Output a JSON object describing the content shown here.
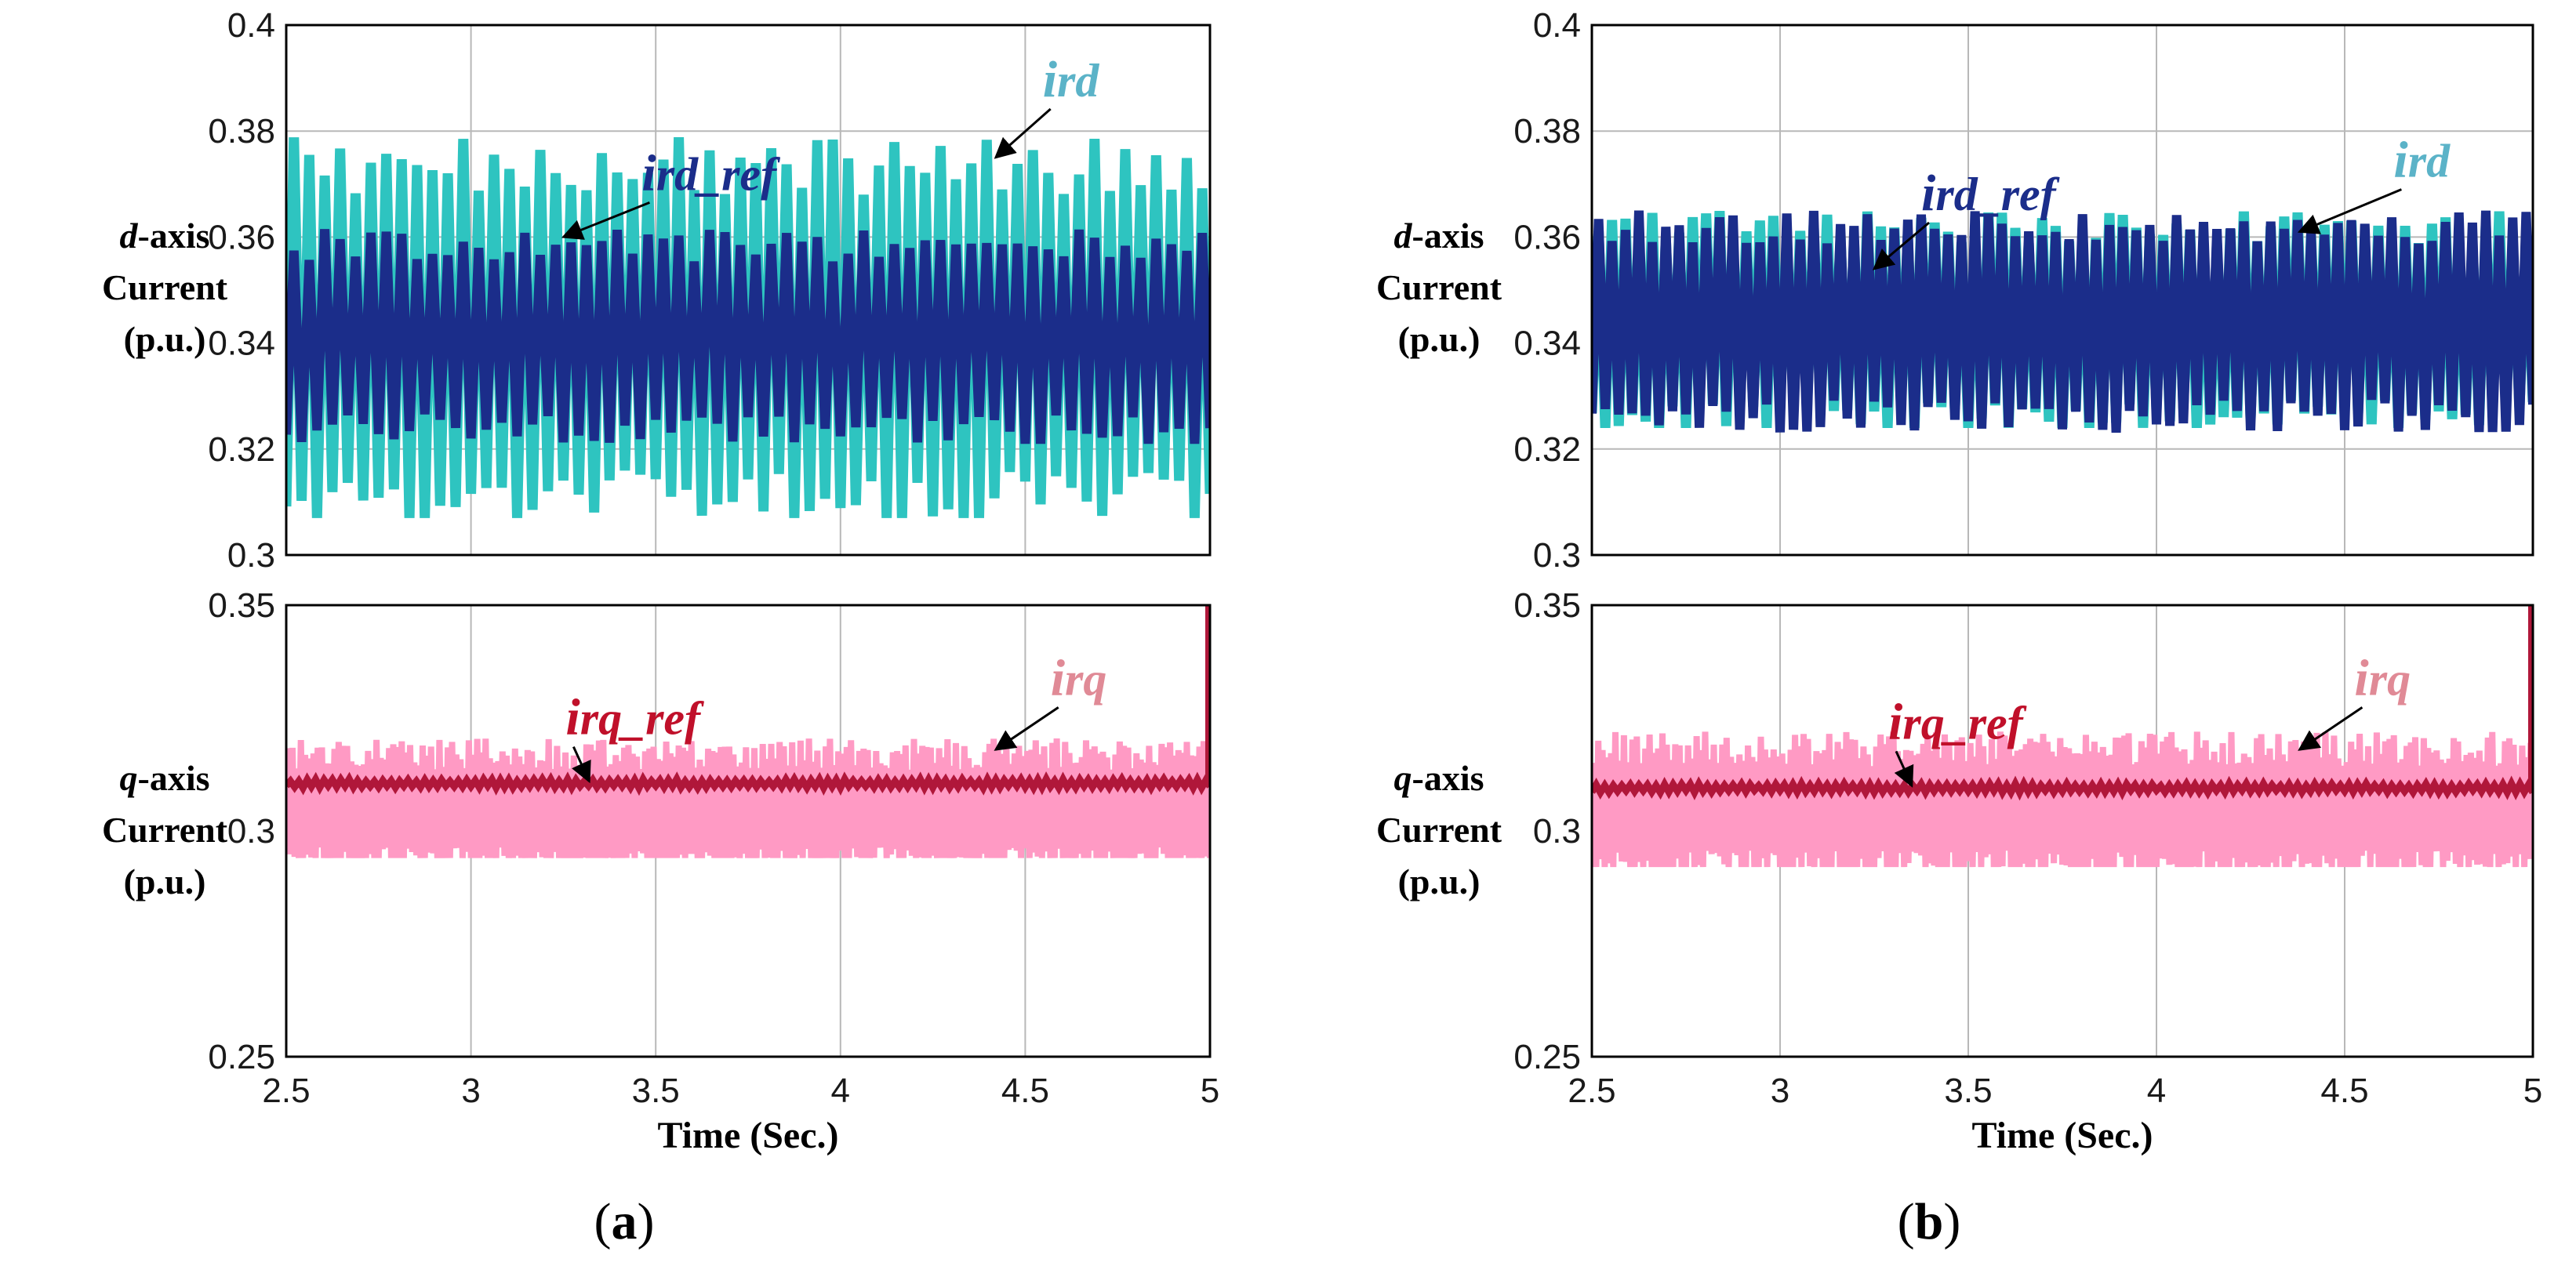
{
  "chart_data": [
    {
      "panel": "a",
      "type": "line",
      "ylabel_parts": [
        "d",
        "-axis",
        "Current",
        "(p.u.)"
      ],
      "xlabel": "",
      "xlim": [
        2.5,
        5
      ],
      "ylim": [
        0.3,
        0.4
      ],
      "xticks": [
        "2.5",
        "3",
        "3.5",
        "4",
        "4.5",
        "5"
      ],
      "yticks": [
        "0.3",
        "0.32",
        "0.34",
        "0.36",
        "0.38",
        "0.4"
      ],
      "grid": true,
      "series": [
        {
          "name": "ird",
          "color": "#2ec4c0",
          "center": 0.342,
          "min": 0.307,
          "max": 0.381,
          "cycles": 60
        },
        {
          "name": "ird_ref",
          "color": "#1b2d8a",
          "center": 0.341,
          "min": 0.321,
          "max": 0.362,
          "cycles": 60
        }
      ],
      "annotations": [
        {
          "name": "ird_ref",
          "color": "#1b2d8a",
          "tip_x": 3.25,
          "tip_y": 0.36
        },
        {
          "name": "ird",
          "color": "#5bb3c8",
          "tip_x": 4.42,
          "tip_y": 0.375
        }
      ]
    },
    {
      "panel": "a",
      "type": "line",
      "ylabel_parts": [
        "q",
        "-axis",
        "Current",
        "(p.u.)"
      ],
      "xlabel": "Time (Sec.)",
      "xlim": [
        2.5,
        5
      ],
      "ylim": [
        0.25,
        0.35
      ],
      "xticks": [
        "2.5",
        "3",
        "3.5",
        "4",
        "4.5",
        "5"
      ],
      "yticks": [
        "0.25",
        "0.3",
        "0.35"
      ],
      "grid": true,
      "series": [
        {
          "name": "irq",
          "color": "#ff9ac4",
          "center": 0.305,
          "min": 0.294,
          "max": 0.325,
          "cycles": 220
        },
        {
          "name": "irq_ref",
          "color": "#b0173a",
          "center": 0.3105,
          "min": 0.3095,
          "max": 0.3115,
          "cycles": 110
        }
      ],
      "annotations": [
        {
          "name": "irq_ref",
          "color": "#c0102a",
          "tip_x": 3.32,
          "tip_y": 0.311
        },
        {
          "name": "irq",
          "color": "#e08a96",
          "tip_x": 4.42,
          "tip_y": 0.318
        }
      ]
    },
    {
      "panel": "b",
      "type": "line",
      "ylabel_parts": [
        "d",
        "-axis",
        "Current",
        "(p.u.)"
      ],
      "xlabel": "",
      "xlim": [
        2.5,
        5
      ],
      "ylim": [
        0.3,
        0.4
      ],
      "xticks": [
        "2.5",
        "3",
        "3.5",
        "4",
        "4.5",
        "5"
      ],
      "yticks": [
        "0.3",
        "0.32",
        "0.34",
        "0.36",
        "0.38",
        "0.4"
      ],
      "grid": true,
      "series": [
        {
          "name": "ird",
          "color": "#2ec4c0",
          "center": 0.344,
          "min": 0.324,
          "max": 0.366,
          "cycles": 70
        },
        {
          "name": "ird_ref",
          "color": "#1b2d8a",
          "center": 0.344,
          "min": 0.323,
          "max": 0.365,
          "cycles": 70
        }
      ],
      "annotations": [
        {
          "name": "ird_ref",
          "color": "#1b2d8a",
          "tip_x": 3.25,
          "tip_y": 0.354
        },
        {
          "name": "ird",
          "color": "#5bb3c8",
          "tip_x": 4.38,
          "tip_y": 0.361
        }
      ]
    },
    {
      "panel": "b",
      "type": "line",
      "ylabel_parts": [
        "q",
        "-axis",
        "Current",
        "(p.u.)"
      ],
      "xlabel": "Time (Sec.)",
      "xlim": [
        2.5,
        5
      ],
      "ylim": [
        0.25,
        0.35
      ],
      "xticks": [
        "2.5",
        "3",
        "3.5",
        "4",
        "4.5",
        "5"
      ],
      "yticks": [
        "0.25",
        "0.3",
        "0.35"
      ],
      "grid": true,
      "series": [
        {
          "name": "irq",
          "color": "#ff9ac4",
          "center": 0.305,
          "min": 0.292,
          "max": 0.326,
          "cycles": 220
        },
        {
          "name": "irq_ref",
          "color": "#b0173a",
          "center": 0.3095,
          "min": 0.3085,
          "max": 0.3105,
          "cycles": 110
        }
      ],
      "annotations": [
        {
          "name": "irq_ref",
          "color": "#c0102a",
          "tip_x": 3.35,
          "tip_y": 0.31
        },
        {
          "name": "irq",
          "color": "#e08a96",
          "tip_x": 4.38,
          "tip_y": 0.318
        }
      ]
    }
  ],
  "subfigure_labels": {
    "a": {
      "open": "(",
      "letter": "a",
      "close": ")"
    },
    "b": {
      "open": "(",
      "letter": "b",
      "close": ")"
    }
  }
}
